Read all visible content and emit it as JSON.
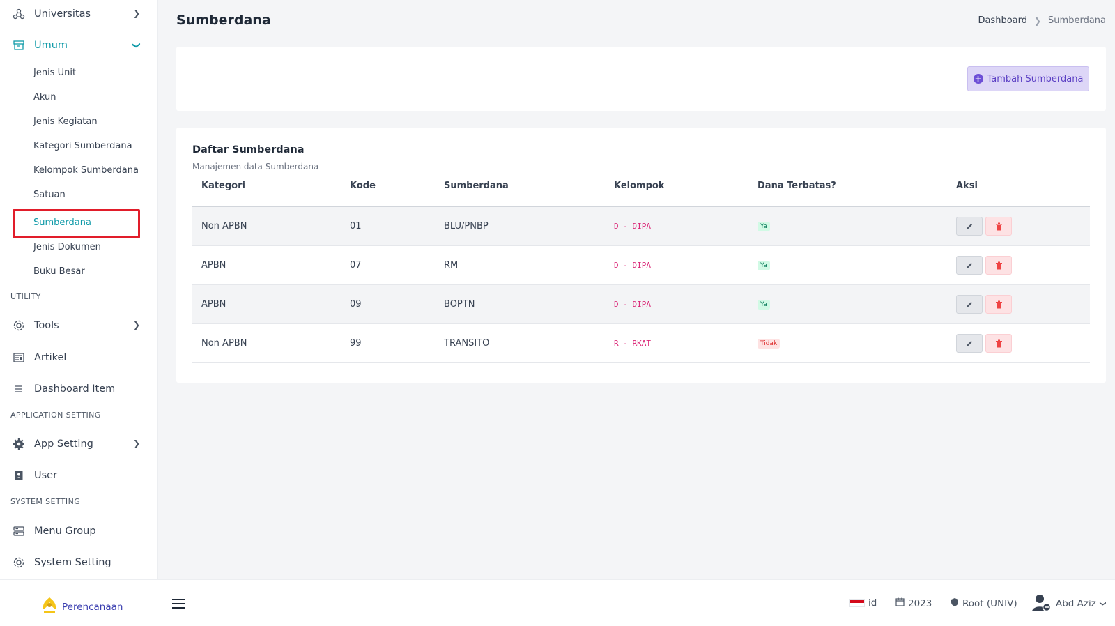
{
  "sidebar": {
    "universitas": "Universitas",
    "umum": "Umum",
    "sub_items": [
      "Jenis Unit",
      "Akun",
      "Jenis Kegiatan",
      "Kategori Sumberdana",
      "Kelompok Sumberdana",
      "Satuan",
      "Sumberdana",
      "Jenis Dokumen",
      "Buku Besar"
    ],
    "section_utility": "UTILITY",
    "tools": "Tools",
    "artikel": "Artikel",
    "dashboard_item": "Dashboard Item",
    "section_app_setting": "APPLICATION SETTING",
    "app_setting": "App Setting",
    "user": "User",
    "section_system_setting": "SYSTEM SETTING",
    "menu_group": "Menu Group",
    "system_setting": "System Setting"
  },
  "header": {
    "title": "Sumberdana",
    "breadcrumb": [
      "Dashboard",
      "Sumberdana"
    ]
  },
  "actions": {
    "add_label": "Tambah Sumberdana"
  },
  "table": {
    "title": "Daftar Sumberdana",
    "subtitle": "Manajemen data Sumberdana",
    "columns": [
      "Kategori",
      "Kode",
      "Sumberdana",
      "Kelompok",
      "Dana Terbatas?",
      "Aksi"
    ],
    "rows": [
      {
        "kategori": "Non APBN",
        "kode": "01",
        "sumberdana": "BLU/PNBP",
        "kelompok": "D - DIPA",
        "terbatas": "Ya"
      },
      {
        "kategori": "APBN",
        "kode": "07",
        "sumberdana": "RM",
        "kelompok": "D - DIPA",
        "terbatas": "Ya"
      },
      {
        "kategori": "APBN",
        "kode": "09",
        "sumberdana": "BOPTN",
        "kelompok": "D - DIPA",
        "terbatas": "Ya"
      },
      {
        "kategori": "Non APBN",
        "kode": "99",
        "sumberdana": "TRANSITO",
        "kelompok": "R - RKAT",
        "terbatas": "Tidak"
      }
    ]
  },
  "bottombar": {
    "brand": "Perencanaan",
    "language": "id",
    "year": "2023",
    "role": "Root (UNIV)",
    "user": "Abd Aziz"
  },
  "colors": {
    "accent": "#0f9aa8",
    "primary_button": "#5b3fc4",
    "highlight": "#e11d2a"
  }
}
